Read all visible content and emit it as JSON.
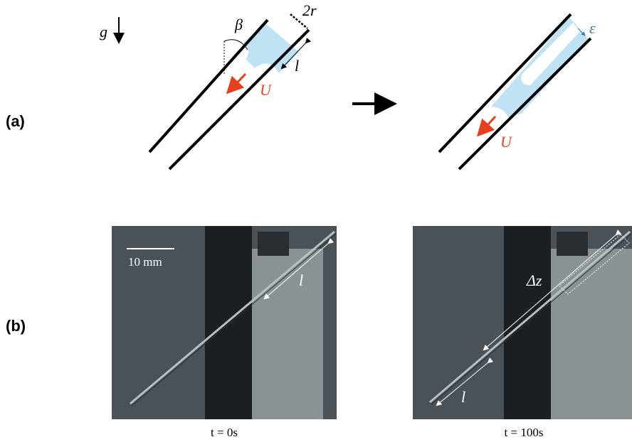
{
  "panel_a": {
    "label": "(a)",
    "gravity": "g",
    "angle": "β",
    "diameter": "2r",
    "length": "l",
    "velocity_left": "U",
    "film": "ε",
    "velocity_right": "U"
  },
  "panel_b": {
    "label": "(b)",
    "scale_bar": "10 mm",
    "left": {
      "length": "l",
      "caption": "t = 0s"
    },
    "right": {
      "displacement": "Δz",
      "length": "l",
      "caption": "t = 100s"
    }
  }
}
